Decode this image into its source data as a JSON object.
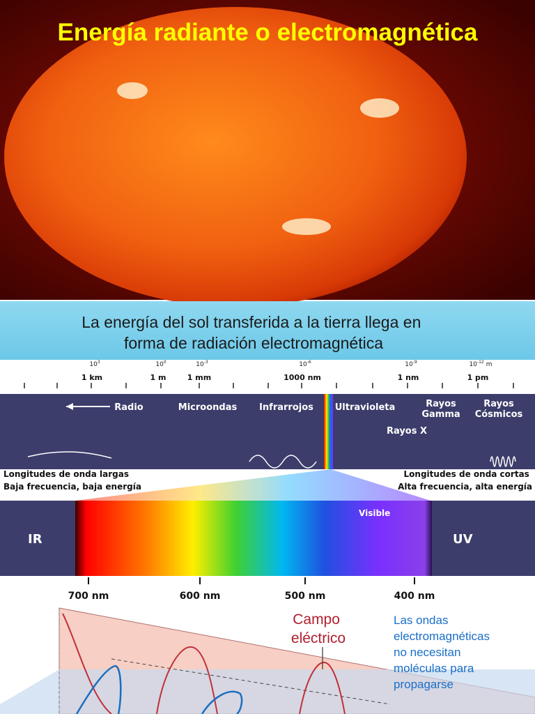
{
  "title": "Energía radiante o electromagnética",
  "banner": [
    "La energía del sol transferida a la tierra llega en",
    "forma de radiación electromagnética"
  ],
  "spectrum": {
    "scale": [
      {
        "base": "10",
        "exp": "3",
        "label": "1 km"
      },
      {
        "base": "10",
        "exp": "0",
        "label": "1 m"
      },
      {
        "base": "10",
        "exp": "-3",
        "label": "1 mm"
      },
      {
        "base": "10",
        "exp": "-6",
        "label": "1000 nm"
      },
      {
        "base": "10",
        "exp": "-9",
        "label": "1 nm"
      },
      {
        "base": "10",
        "exp": "-12",
        "unit": "m",
        "label": "1 pm"
      }
    ],
    "bands": [
      [
        "Radio"
      ],
      [
        "Microondas"
      ],
      [
        "Infrarrojos"
      ],
      [
        "Ultravioleta"
      ],
      [
        "Rayos",
        "Gamma"
      ],
      [
        "Rayos",
        "Cósmicos"
      ],
      [
        "Rayos X"
      ]
    ],
    "long_waves": [
      "Longitudes de onda largas",
      "Baja frecuencia, baja energía"
    ],
    "short_waves": [
      "Longitudes de onda cortas",
      "Alta frecuencia, alta energía"
    ],
    "ir": "IR",
    "uv": "UV",
    "visible": "Visible",
    "wavelengths": [
      "700 nm",
      "600 nm",
      "500 nm",
      "400 nm"
    ]
  },
  "wave": {
    "field_label": [
      "Campo",
      "eléctrico"
    ],
    "note": [
      "Las ondas",
      "electromagnéticas",
      "no necesitan",
      "moléculas para",
      "propagarse"
    ]
  }
}
